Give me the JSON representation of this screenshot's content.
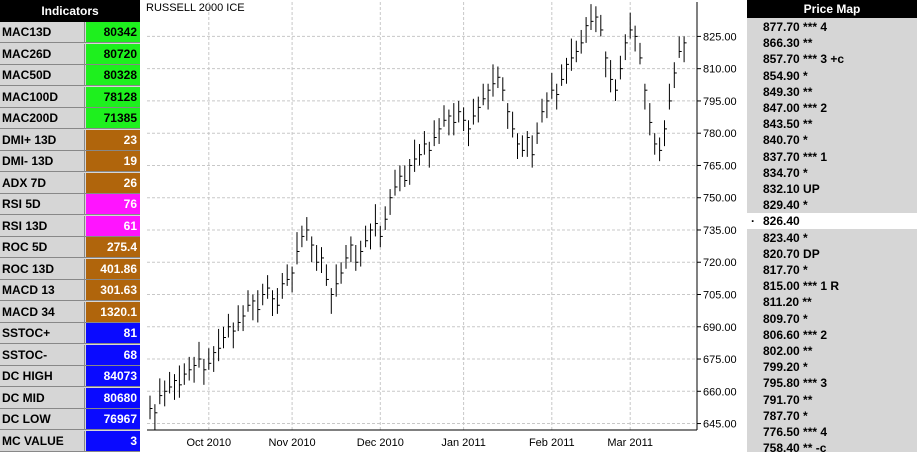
{
  "indicators": {
    "title": "Indicators",
    "rows": [
      {
        "label": "MAC13D",
        "value": "80342",
        "color": "#1ef01e",
        "text_color": "#000"
      },
      {
        "label": "MAC26D",
        "value": "80720",
        "color": "#1ef01e",
        "text_color": "#000"
      },
      {
        "label": "MAC50D",
        "value": "80328",
        "color": "#1ef01e",
        "text_color": "#000"
      },
      {
        "label": "MAC100D",
        "value": "78128",
        "color": "#1ef01e",
        "text_color": "#000"
      },
      {
        "label": "MAC200D",
        "value": "71385",
        "color": "#1ef01e",
        "text_color": "#000"
      },
      {
        "label": "DMI+ 13D",
        "value": "23",
        "color": "#b0650c",
        "text_color": "#fff"
      },
      {
        "label": "DMI- 13D",
        "value": "19",
        "color": "#b0650c",
        "text_color": "#fff"
      },
      {
        "label": "ADX 7D",
        "value": "26",
        "color": "#b0650c",
        "text_color": "#fff"
      },
      {
        "label": "RSI 5D",
        "value": "76",
        "color": "#ff14ff",
        "text_color": "#fff"
      },
      {
        "label": "RSI 13D",
        "value": "61",
        "color": "#ff14ff",
        "text_color": "#fff"
      },
      {
        "label": "ROC 5D",
        "value": "275.4",
        "color": "#b0650c",
        "text_color": "#fff"
      },
      {
        "label": "ROC 13D",
        "value": "401.86",
        "color": "#b0650c",
        "text_color": "#fff"
      },
      {
        "label": "MACD 13",
        "value": "301.63",
        "color": "#b0650c",
        "text_color": "#fff"
      },
      {
        "label": "MACD 34",
        "value": "1320.1",
        "color": "#b0650c",
        "text_color": "#fff"
      },
      {
        "label": "SSTOC+",
        "value": "81",
        "color": "#0a0aff",
        "text_color": "#fff"
      },
      {
        "label": "SSTOC-",
        "value": "68",
        "color": "#0a0aff",
        "text_color": "#fff"
      },
      {
        "label": "DC HIGH",
        "value": "84073",
        "color": "#0a0aff",
        "text_color": "#fff"
      },
      {
        "label": "DC MID",
        "value": "80680",
        "color": "#0a0aff",
        "text_color": "#fff"
      },
      {
        "label": "DC LOW",
        "value": "76967",
        "color": "#0a0aff",
        "text_color": "#fff"
      },
      {
        "label": "MC VALUE",
        "value": "3",
        "color": "#0a0aff",
        "text_color": "#fff"
      }
    ]
  },
  "chart_data": {
    "type": "ohlc",
    "title": "RUSSELL 2000 ICE",
    "color": "#000000",
    "grid": true,
    "ylim": [
      642,
      841
    ],
    "yticks": [
      {
        "value": 645,
        "label": "645.00"
      },
      {
        "value": 660,
        "label": "660.00"
      },
      {
        "value": 675,
        "label": "675.00"
      },
      {
        "value": 690,
        "label": "690.00"
      },
      {
        "value": 705,
        "label": "705.00"
      },
      {
        "value": 720,
        "label": "720.00"
      },
      {
        "value": 735,
        "label": "735.00"
      },
      {
        "value": 750,
        "label": "750.00"
      },
      {
        "value": 765,
        "label": "765.00"
      },
      {
        "value": 780,
        "label": "780.00"
      },
      {
        "value": 795,
        "label": "795.00"
      },
      {
        "value": 810,
        "label": "810.00"
      },
      {
        "value": 825,
        "label": "825.00"
      }
    ],
    "categories": [
      null,
      null,
      null,
      null,
      null,
      null,
      null,
      null,
      null,
      null,
      null,
      null,
      "Oct 2010",
      null,
      null,
      null,
      null,
      null,
      null,
      null,
      null,
      null,
      null,
      null,
      null,
      null,
      null,
      null,
      null,
      "Nov 2010",
      null,
      null,
      null,
      null,
      null,
      null,
      null,
      null,
      null,
      null,
      null,
      null,
      null,
      null,
      null,
      null,
      null,
      "Dec 2010",
      null,
      null,
      null,
      null,
      null,
      null,
      null,
      null,
      null,
      null,
      null,
      null,
      null,
      null,
      null,
      null,
      "Jan 2011",
      null,
      null,
      null,
      null,
      null,
      null,
      null,
      null,
      null,
      null,
      null,
      null,
      null,
      null,
      null,
      null,
      null,
      "Feb 2011",
      null,
      null,
      null,
      null,
      null,
      null,
      null,
      null,
      null,
      null,
      null,
      null,
      null,
      null,
      null,
      "Mar 2011",
      null,
      null,
      null,
      null,
      null,
      null,
      null,
      null,
      null,
      null,
      null
    ],
    "high": [
      658,
      654,
      666,
      665,
      669,
      668,
      672,
      673,
      676,
      676,
      683,
      675,
      680,
      681,
      689,
      690,
      696,
      692,
      700,
      700,
      707,
      705,
      707,
      710,
      714,
      707,
      708,
      715,
      719,
      718,
      734,
      737,
      741,
      732,
      728,
      727,
      719,
      708,
      719,
      720,
      728,
      732,
      728,
      730,
      737,
      738,
      747,
      737,
      746,
      754,
      763,
      765,
      765,
      768,
      777,
      775,
      781,
      776,
      786,
      787,
      793,
      791,
      794,
      795,
      792,
      786,
      796,
      797,
      803,
      803,
      812,
      811,
      806,
      794,
      790,
      780,
      779,
      781,
      779,
      785,
      796,
      799,
      808,
      803,
      812,
      815,
      824,
      823,
      828,
      834,
      840,
      839,
      835,
      818,
      814,
      805,
      816,
      826,
      836,
      830,
      822,
      803,
      794,
      780,
      778,
      786,
      803,
      813,
      825,
      825
    ],
    "low": [
      647,
      642,
      654,
      653,
      659,
      656,
      657,
      663,
      665,
      664,
      671,
      663,
      670,
      669,
      674,
      680,
      685,
      680,
      688,
      688,
      697,
      693,
      692,
      700,
      703,
      695,
      696,
      703,
      709,
      706,
      719,
      727,
      730,
      720,
      716,
      715,
      709,
      696,
      704,
      710,
      717,
      720,
      716,
      718,
      727,
      726,
      732,
      727,
      735,
      742,
      751,
      753,
      755,
      756,
      762,
      765,
      770,
      764,
      774,
      775,
      783,
      779,
      779,
      785,
      781,
      774,
      784,
      785,
      793,
      791,
      797,
      801,
      795,
      782,
      778,
      768,
      769,
      769,
      764,
      775,
      785,
      787,
      796,
      791,
      802,
      803,
      809,
      813,
      817,
      822,
      828,
      827,
      825,
      806,
      799,
      795,
      805,
      814,
      824,
      818,
      812,
      791,
      779,
      770,
      767,
      774,
      791,
      801,
      815,
      813
    ],
    "close": [
      652,
      650,
      658,
      660,
      662,
      665,
      663,
      668,
      670,
      672,
      675,
      670,
      673,
      678,
      680,
      685,
      690,
      688,
      692,
      695,
      700,
      702,
      698,
      705,
      708,
      703,
      700,
      710,
      712,
      715,
      725,
      732,
      735,
      728,
      720,
      722,
      712,
      705,
      710,
      715,
      722,
      728,
      720,
      725,
      730,
      735,
      738,
      732,
      740,
      750,
      755,
      760,
      758,
      765,
      768,
      770,
      775,
      772,
      778,
      782,
      786,
      788,
      785,
      790,
      786,
      782,
      788,
      792,
      796,
      800,
      803,
      806,
      800,
      790,
      782,
      775,
      772,
      778,
      770,
      780,
      790,
      795,
      800,
      798,
      805,
      812,
      815,
      818,
      822,
      830,
      832,
      834,
      828,
      815,
      805,
      800,
      810,
      822,
      828,
      825,
      815,
      800,
      785,
      775,
      772,
      782,
      795,
      808,
      818,
      822
    ]
  },
  "price_map": {
    "title": "Price Map",
    "rows_above": [
      "877.70 *** 4",
      "866.30 **",
      "857.70 *** 3 +c",
      "854.90 *",
      "849.30 **",
      "847.00 *** 2",
      "843.50 **",
      "840.70 *",
      "837.70 *** 1",
      "834.70 *",
      "832.10 UP",
      "829.40 *"
    ],
    "current": "826.40",
    "rows_below": [
      "823.40 *",
      "820.70 DP",
      "817.70 *",
      "815.00 *** 1 R",
      "811.20 **",
      "809.70 *",
      "806.60 *** 2",
      "802.00 **",
      "799.20 *",
      "795.80 *** 3",
      "791.70 **",
      "787.70 *",
      "776.50 *** 4",
      "758.40 ** -c"
    ]
  }
}
